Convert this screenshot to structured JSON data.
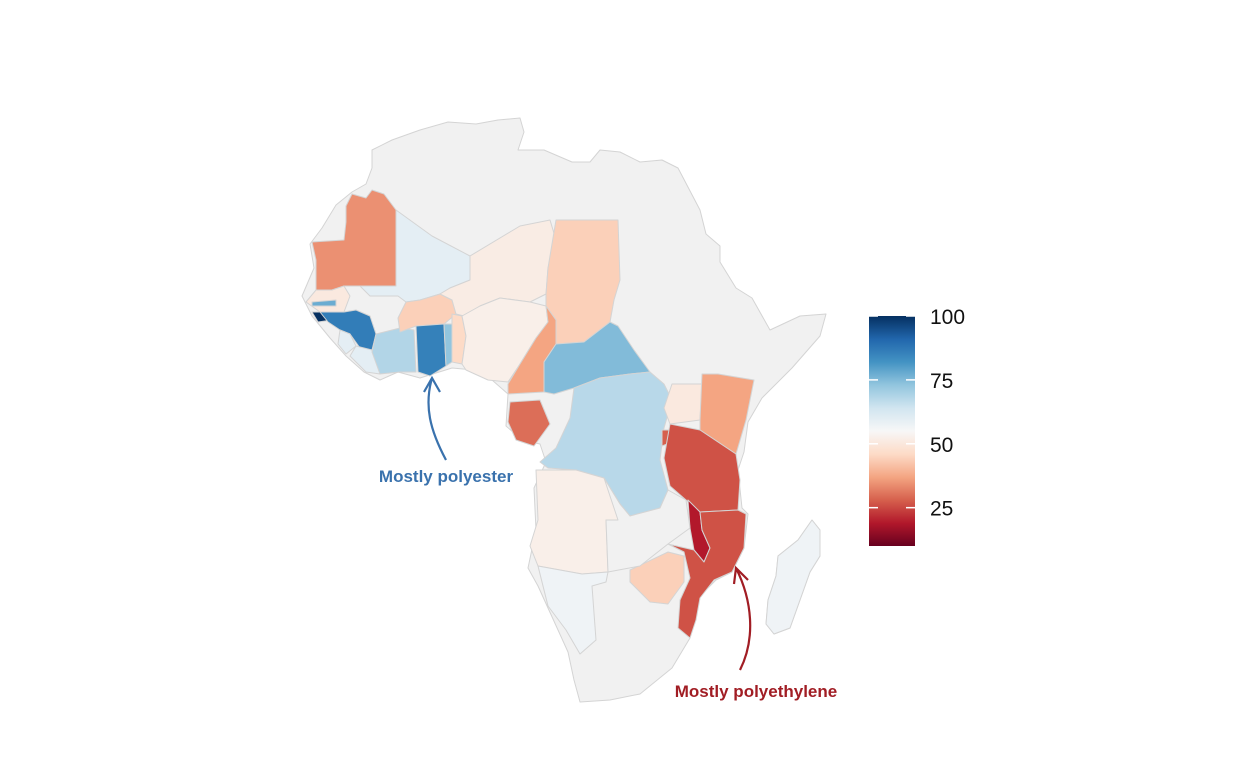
{
  "map": {
    "region": "Africa",
    "palette": [
      "#67001f",
      "#b2182b",
      "#d6604d",
      "#f4a582",
      "#fddbc7",
      "#f7f7f7",
      "#d1e5f0",
      "#92c5de",
      "#4393c3",
      "#2166ac",
      "#053061"
    ],
    "no_data_color": "#f1f1f1",
    "border_color": "#d4d4d4",
    "scale": {
      "min": 10,
      "max": 100
    },
    "countries": [
      {
        "name": "Mauritania",
        "value": 27
      },
      {
        "name": "Mali",
        "value": 55
      },
      {
        "name": "Senegal",
        "value": 45
      },
      {
        "name": "Gambia",
        "value": 75
      },
      {
        "name": "Guinea-Bissau",
        "value": 100
      },
      {
        "name": "Guinea",
        "value": 85
      },
      {
        "name": "Sierra Leone",
        "value": 55
      },
      {
        "name": "Liberia",
        "value": 55
      },
      {
        "name": "Ivory Coast",
        "value": 65
      },
      {
        "name": "Burkina Faso",
        "value": 38
      },
      {
        "name": "Ghana",
        "value": 84
      },
      {
        "name": "Togo",
        "value": 70
      },
      {
        "name": "Benin",
        "value": 40
      },
      {
        "name": "Niger",
        "value": 46
      },
      {
        "name": "Nigeria",
        "value": 47
      },
      {
        "name": "Chad",
        "value": 38
      },
      {
        "name": "Cameroon",
        "value": 30
      },
      {
        "name": "Central African Republic",
        "value": 72
      },
      {
        "name": "Gabon",
        "value": 22
      },
      {
        "name": "DR Congo",
        "value": 64
      },
      {
        "name": "Uganda",
        "value": 45
      },
      {
        "name": "Kenya",
        "value": 30
      },
      {
        "name": "Rwanda",
        "value": 20
      },
      {
        "name": "Tanzania",
        "value": 18
      },
      {
        "name": "Malawi",
        "value": 10
      },
      {
        "name": "Mozambique",
        "value": 18
      },
      {
        "name": "Zimbabwe",
        "value": 38
      },
      {
        "name": "Angola",
        "value": 47
      },
      {
        "name": "Zambia",
        "value": null
      },
      {
        "name": "Namibia",
        "value": 52
      },
      {
        "name": "Madagascar",
        "value": 52
      }
    ]
  },
  "legend": {
    "ticks": [
      {
        "label": "100",
        "value": 100
      },
      {
        "label": "75",
        "value": 75
      },
      {
        "label": "50",
        "value": 50
      },
      {
        "label": "25",
        "value": 25
      }
    ]
  },
  "annotations": {
    "polyester": {
      "text": "Mostly polyester",
      "color": "#3a72ad"
    },
    "polyethylene": {
      "text": "Mostly polyethylene",
      "color": "#a11d24"
    }
  }
}
